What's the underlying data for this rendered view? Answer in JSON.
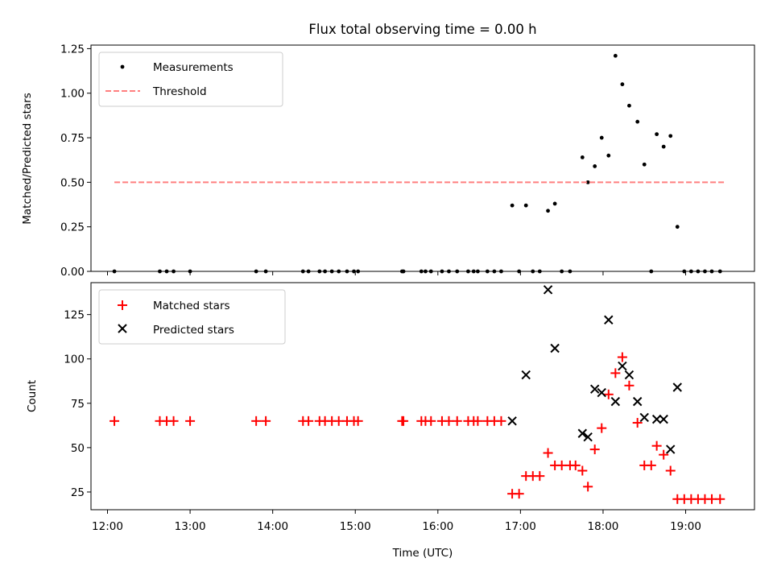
{
  "chart_data": {
    "title": "Flux total observing time = 0.00 h",
    "xlabel": "Time (UTC)",
    "x_ticks": [
      "12:00",
      "13:00",
      "14:00",
      "15:00",
      "16:00",
      "17:00",
      "18:00",
      "19:00"
    ],
    "xlim": [
      "11:48",
      "19:50"
    ],
    "panels": [
      {
        "type": "scatter",
        "ylabel": "Matched/Predicted stars",
        "ylim": [
          0,
          1.27
        ],
        "y_ticks": [
          "0.00",
          "0.25",
          "0.50",
          "0.75",
          "1.00",
          "1.25"
        ],
        "legend_position": "top-left",
        "series": [
          {
            "name": "Measurements",
            "marker": "dot",
            "color": "#000000",
            "points": [
              [
                "12:05",
                0
              ],
              [
                "12:38",
                0
              ],
              [
                "12:43",
                0
              ],
              [
                "12:48",
                0
              ],
              [
                "13:00",
                0
              ],
              [
                "13:48",
                0
              ],
              [
                "13:55",
                0
              ],
              [
                "14:22",
                0
              ],
              [
                "14:26",
                0
              ],
              [
                "14:34",
                0
              ],
              [
                "14:38",
                0
              ],
              [
                "14:43",
                0
              ],
              [
                "14:48",
                0
              ],
              [
                "14:54",
                0
              ],
              [
                "14:59",
                0
              ],
              [
                "15:02",
                0
              ],
              [
                "15:34",
                0
              ],
              [
                "15:35",
                0
              ],
              [
                "15:48",
                0
              ],
              [
                "15:51",
                0
              ],
              [
                "15:55",
                0
              ],
              [
                "16:03",
                0
              ],
              [
                "16:08",
                0
              ],
              [
                "16:14",
                0
              ],
              [
                "16:22",
                0
              ],
              [
                "16:26",
                0
              ],
              [
                "16:29",
                0
              ],
              [
                "16:36",
                0
              ],
              [
                "16:41",
                0
              ],
              [
                "16:46",
                0
              ],
              [
                "16:54",
                0.37
              ],
              [
                "16:59",
                0
              ],
              [
                "17:04",
                0.37
              ],
              [
                "17:09",
                0
              ],
              [
                "17:14",
                0
              ],
              [
                "17:20",
                0.34
              ],
              [
                "17:25",
                0.38
              ],
              [
                "17:30",
                0
              ],
              [
                "17:36",
                0
              ],
              [
                "17:45",
                0.64
              ],
              [
                "17:49",
                0.5
              ],
              [
                "17:54",
                0.59
              ],
              [
                "17:59",
                0.75
              ],
              [
                "18:04",
                0.65
              ],
              [
                "18:09",
                1.21
              ],
              [
                "18:14",
                1.05
              ],
              [
                "18:19",
                0.93
              ],
              [
                "18:25",
                0.84
              ],
              [
                "18:30",
                0.6
              ],
              [
                "18:35",
                0
              ],
              [
                "18:39",
                0.77
              ],
              [
                "18:44",
                0.7
              ],
              [
                "18:49",
                0.76
              ],
              [
                "18:54",
                0.25
              ],
              [
                "18:59",
                0
              ],
              [
                "19:04",
                0
              ],
              [
                "19:09",
                0
              ],
              [
                "19:14",
                0
              ],
              [
                "19:19",
                0
              ],
              [
                "19:25",
                0
              ]
            ]
          },
          {
            "name": "Threshold",
            "style": "dashed",
            "color": "#ff7f7f",
            "x": [
              "12:05",
              "19:28"
            ],
            "y": 0.5
          }
        ]
      },
      {
        "type": "scatter",
        "ylabel": "Count",
        "ylim": [
          15,
          143
        ],
        "y_ticks": [
          "25",
          "50",
          "75",
          "100",
          "125"
        ],
        "legend_position": "top-left",
        "series": [
          {
            "name": "Matched stars",
            "marker": "plus",
            "color": "#ff0000",
            "points": [
              [
                "12:05",
                65
              ],
              [
                "12:38",
                65
              ],
              [
                "12:43",
                65
              ],
              [
                "12:48",
                65
              ],
              [
                "13:00",
                65
              ],
              [
                "13:48",
                65
              ],
              [
                "13:55",
                65
              ],
              [
                "14:22",
                65
              ],
              [
                "14:26",
                65
              ],
              [
                "14:34",
                65
              ],
              [
                "14:38",
                65
              ],
              [
                "14:43",
                65
              ],
              [
                "14:48",
                65
              ],
              [
                "14:54",
                65
              ],
              [
                "14:59",
                65
              ],
              [
                "15:02",
                65
              ],
              [
                "15:34",
                65
              ],
              [
                "15:35",
                65
              ],
              [
                "15:48",
                65
              ],
              [
                "15:51",
                65
              ],
              [
                "15:55",
                65
              ],
              [
                "16:03",
                65
              ],
              [
                "16:08",
                65
              ],
              [
                "16:14",
                65
              ],
              [
                "16:22",
                65
              ],
              [
                "16:26",
                65
              ],
              [
                "16:29",
                65
              ],
              [
                "16:36",
                65
              ],
              [
                "16:41",
                65
              ],
              [
                "16:46",
                65
              ],
              [
                "16:54",
                24
              ],
              [
                "16:59",
                24
              ],
              [
                "17:04",
                34
              ],
              [
                "17:09",
                34
              ],
              [
                "17:14",
                34
              ],
              [
                "17:20",
                47
              ],
              [
                "17:25",
                40
              ],
              [
                "17:30",
                40
              ],
              [
                "17:36",
                40
              ],
              [
                "17:40",
                40
              ],
              [
                "17:45",
                37
              ],
              [
                "17:49",
                28
              ],
              [
                "17:54",
                49
              ],
              [
                "17:59",
                61
              ],
              [
                "18:04",
                80
              ],
              [
                "18:09",
                92
              ],
              [
                "18:14",
                101
              ],
              [
                "18:19",
                85
              ],
              [
                "18:25",
                64
              ],
              [
                "18:30",
                40
              ],
              [
                "18:35",
                40
              ],
              [
                "18:39",
                51
              ],
              [
                "18:44",
                46
              ],
              [
                "18:49",
                37
              ],
              [
                "18:54",
                21
              ],
              [
                "18:59",
                21
              ],
              [
                "19:04",
                21
              ],
              [
                "19:09",
                21
              ],
              [
                "19:14",
                21
              ],
              [
                "19:19",
                21
              ],
              [
                "19:25",
                21
              ]
            ]
          },
          {
            "name": "Predicted stars",
            "marker": "x",
            "color": "#000000",
            "points": [
              [
                "16:54",
                65
              ],
              [
                "17:04",
                91
              ],
              [
                "17:20",
                139
              ],
              [
                "17:25",
                106
              ],
              [
                "17:45",
                58
              ],
              [
                "17:49",
                56
              ],
              [
                "17:54",
                83
              ],
              [
                "17:59",
                81
              ],
              [
                "18:04",
                122
              ],
              [
                "18:09",
                76
              ],
              [
                "18:14",
                96
              ],
              [
                "18:19",
                91
              ],
              [
                "18:25",
                76
              ],
              [
                "18:30",
                67
              ],
              [
                "18:39",
                66
              ],
              [
                "18:44",
                66
              ],
              [
                "18:49",
                49
              ],
              [
                "18:54",
                84
              ]
            ]
          }
        ]
      }
    ]
  }
}
